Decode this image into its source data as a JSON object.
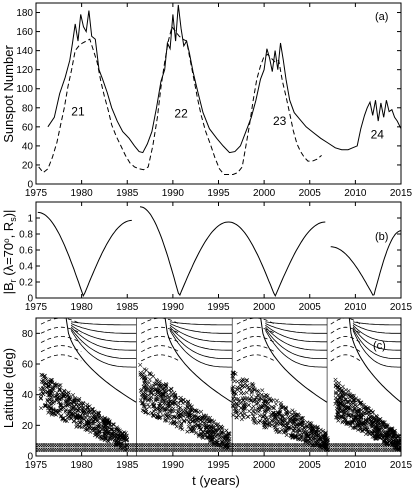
{
  "chart_data": [
    {
      "type": "line",
      "panel_tag": "(a)",
      "ylabel": "Sunspot Number",
      "xlabel": "",
      "xlim": [
        1975,
        2015
      ],
      "ylim": [
        0,
        190
      ],
      "xticks": [
        1975,
        1980,
        1985,
        1990,
        1995,
        2000,
        2005,
        2010,
        2015
      ],
      "yticks": [
        0,
        20,
        40,
        60,
        80,
        100,
        120,
        140,
        160,
        180
      ],
      "cycle_labels": [
        {
          "text": "21",
          "x": 1979.6,
          "y": 72
        },
        {
          "text": "22",
          "x": 1990.9,
          "y": 70
        },
        {
          "text": "23",
          "x": 2001.7,
          "y": 62
        },
        {
          "text": "24",
          "x": 2012.4,
          "y": 48
        }
      ],
      "series": [
        {
          "style": "solid",
          "x": [
            1976.3,
            1977,
            1977.6,
            1978.2,
            1978.7,
            1979.0,
            1979.3,
            1979.6,
            1979.9,
            1980.2,
            1980.5,
            1980.8,
            1981.1,
            1981.5,
            1981.9,
            1982.3,
            1982.8,
            1983.3,
            1983.9,
            1984.5,
            1985.2,
            1985.8,
            1986.3,
            1986.7,
            1987.2,
            1987.7,
            1988.2,
            1988.7,
            1989.1,
            1989.4,
            1989.7,
            1990.0,
            1990.3,
            1990.6,
            1990.9,
            1991.2,
            1991.5,
            1991.8,
            1992.2,
            1992.7,
            1993.3,
            1994.0,
            1994.8,
            1995.5,
            1996.2,
            1996.8,
            1997.4,
            1998.0,
            1998.6,
            1999.1,
            1999.6,
            2000.0,
            2000.3,
            2000.6,
            2000.9,
            2001.2,
            2001.5,
            2001.8,
            2002.1,
            2002.4,
            2002.8,
            2003.3,
            2003.9,
            2004.6,
            2005.4,
            2006.2,
            2007.0,
            2007.8,
            2008.5,
            2009.2,
            2009.7,
            2010.2,
            2010.6,
            2011.0,
            2011.3,
            2011.6,
            2011.9,
            2012.2,
            2012.5,
            2012.8,
            2013.1,
            2013.4,
            2013.7,
            2014.0,
            2014.3,
            2014.6,
            2015.0
          ],
          "y": [
            60,
            70,
            95,
            112,
            130,
            148,
            168,
            150,
            178,
            165,
            160,
            182,
            155,
            152,
            120,
            110,
            96,
            80,
            66,
            55,
            48,
            40,
            34,
            33,
            42,
            55,
            80,
            108,
            120,
            148,
            142,
            178,
            150,
            188,
            163,
            145,
            150,
            138,
            118,
            98,
            75,
            58,
            48,
            40,
            33,
            34,
            40,
            55,
            70,
            88,
            110,
            120,
            142,
            132,
            118,
            140,
            120,
            148,
            130,
            110,
            88,
            75,
            68,
            60,
            54,
            48,
            43,
            38,
            36,
            36,
            38,
            40,
            58,
            72,
            80,
            86,
            72,
            88,
            66,
            85,
            70,
            88,
            76,
            78,
            70,
            66,
            58
          ]
        },
        {
          "style": "dashed",
          "x": [
            1975.3,
            1975.8,
            1976.3,
            1976.8,
            1977.3,
            1977.7,
            1978.1,
            1978.5,
            1978.9,
            1979.3,
            1979.7,
            1980.1,
            1980.5,
            1980.9,
            1981.3,
            1981.7,
            1982.1,
            1982.5,
            1982.9,
            1983.3,
            1983.8,
            1984.3,
            1984.8,
            1985.3,
            1985.8,
            1986.3,
            1986.8,
            1987.3,
            1987.8,
            1988.3,
            1988.7,
            1989.1,
            1989.5,
            1989.9,
            1990.3,
            1990.7,
            1991.1,
            1991.5,
            1991.9,
            1992.3,
            1992.7,
            1993.1,
            1993.6,
            1994.1,
            1994.6,
            1995.1,
            1995.6,
            1996.1,
            1996.6,
            1997.1,
            1997.6,
            1998.0,
            1998.4,
            1998.8,
            1999.2,
            1999.6,
            2000.0,
            2000.4,
            2000.8,
            2001.2,
            2001.6,
            2002.0,
            2002.4,
            2002.8,
            2003.2,
            2003.6,
            2004.0,
            2004.4,
            2004.8,
            2005.3,
            2005.8,
            2006.3
          ],
          "y": [
            18,
            12,
            16,
            28,
            44,
            62,
            80,
            102,
            120,
            140,
            145,
            148,
            150,
            152,
            140,
            128,
            108,
            92,
            78,
            62,
            50,
            40,
            30,
            22,
            18,
            16,
            15,
            18,
            40,
            70,
            102,
            128,
            150,
            165,
            160,
            155,
            152,
            150,
            130,
            110,
            90,
            72,
            55,
            42,
            28,
            16,
            10,
            10,
            10,
            12,
            18,
            40,
            62,
            88,
            110,
            124,
            134,
            136,
            132,
            128,
            130,
            108,
            92,
            74,
            56,
            42,
            34,
            28,
            24,
            24,
            26,
            30
          ]
        }
      ]
    },
    {
      "type": "line",
      "panel_tag": "(b)",
      "ylabel": "|B_r (λ=70°, R_s)|",
      "xlabel": "",
      "xlim": [
        1975,
        2015
      ],
      "ylim": [
        0,
        1.2
      ],
      "xticks": [
        1975,
        1980,
        1985,
        1990,
        1995,
        2000,
        2005,
        2010,
        2015
      ],
      "yticks": [
        0,
        0.2,
        0.4,
        0.6,
        0.8,
        1
      ],
      "xtick_labels": [
        "1975",
        "1980",
        "1985",
        "1990",
        "1995",
        "2000",
        "2005",
        "2010",
        "2015"
      ],
      "ytick_labels": [
        "0",
        "0.2",
        "0.4",
        "0.6",
        "0.8",
        "1"
      ],
      "series": [
        {
          "style": "solid",
          "segments": [
            {
              "x0": 1975.2,
              "x1": 1985.5,
              "xmin": 1980.2,
              "peak_end": 0.95,
              "start": 1.05
            },
            {
              "x0": 1986.4,
              "x1": 1996.1,
              "xmin": 1990.7,
              "peak_end": 0.93,
              "start": 1.12
            },
            {
              "x0": 1996.1,
              "x1": 2006.7,
              "xmin": 2001.2,
              "peak_end": 0.93,
              "start": 0.93
            },
            {
              "x0": 2007.3,
              "x1": 2015.0,
              "xmin": 2012.0,
              "peak_end": 0.82,
              "start": 0.62
            }
          ]
        }
      ]
    },
    {
      "type": "heatmap",
      "panel_tag": "(c)",
      "ylabel": "Latitude (deg)",
      "xlabel": "t (years)",
      "xlim": [
        1975,
        2015
      ],
      "ylim": [
        0,
        90
      ],
      "xticks": [
        1975,
        1980,
        1985,
        1990,
        1995,
        2000,
        2005,
        2010,
        2015
      ],
      "yticks": [
        0,
        20,
        40,
        60,
        80
      ],
      "xtick_labels": [
        "1975",
        "1980",
        "1985",
        "1990",
        "1995",
        "2000",
        "2005",
        "2010",
        "2015"
      ],
      "ytick_labels": [
        "0",
        "20",
        "40",
        "60",
        "80"
      ],
      "cycles": [
        {
          "start": 1975.0,
          "end": 1986.0
        },
        {
          "start": 1986.0,
          "end": 1996.5
        },
        {
          "start": 1996.5,
          "end": 2006.9
        },
        {
          "start": 2006.9,
          "end": 2015.0
        }
      ],
      "butterfly_wings": [
        {
          "x0": 1975.5,
          "x1": 1985.0,
          "lat_top0": 52,
          "lat_bot0": 28
        },
        {
          "x0": 1986.4,
          "x1": 1996.2,
          "lat_top0": 56,
          "lat_bot0": 28
        },
        {
          "x0": 1996.5,
          "x1": 2007.0,
          "lat_top0": 52,
          "lat_bot0": 24
        },
        {
          "x0": 2007.8,
          "x1": 2015.0,
          "lat_top0": 46,
          "lat_bot0": 22
        }
      ],
      "grid": false
    }
  ]
}
